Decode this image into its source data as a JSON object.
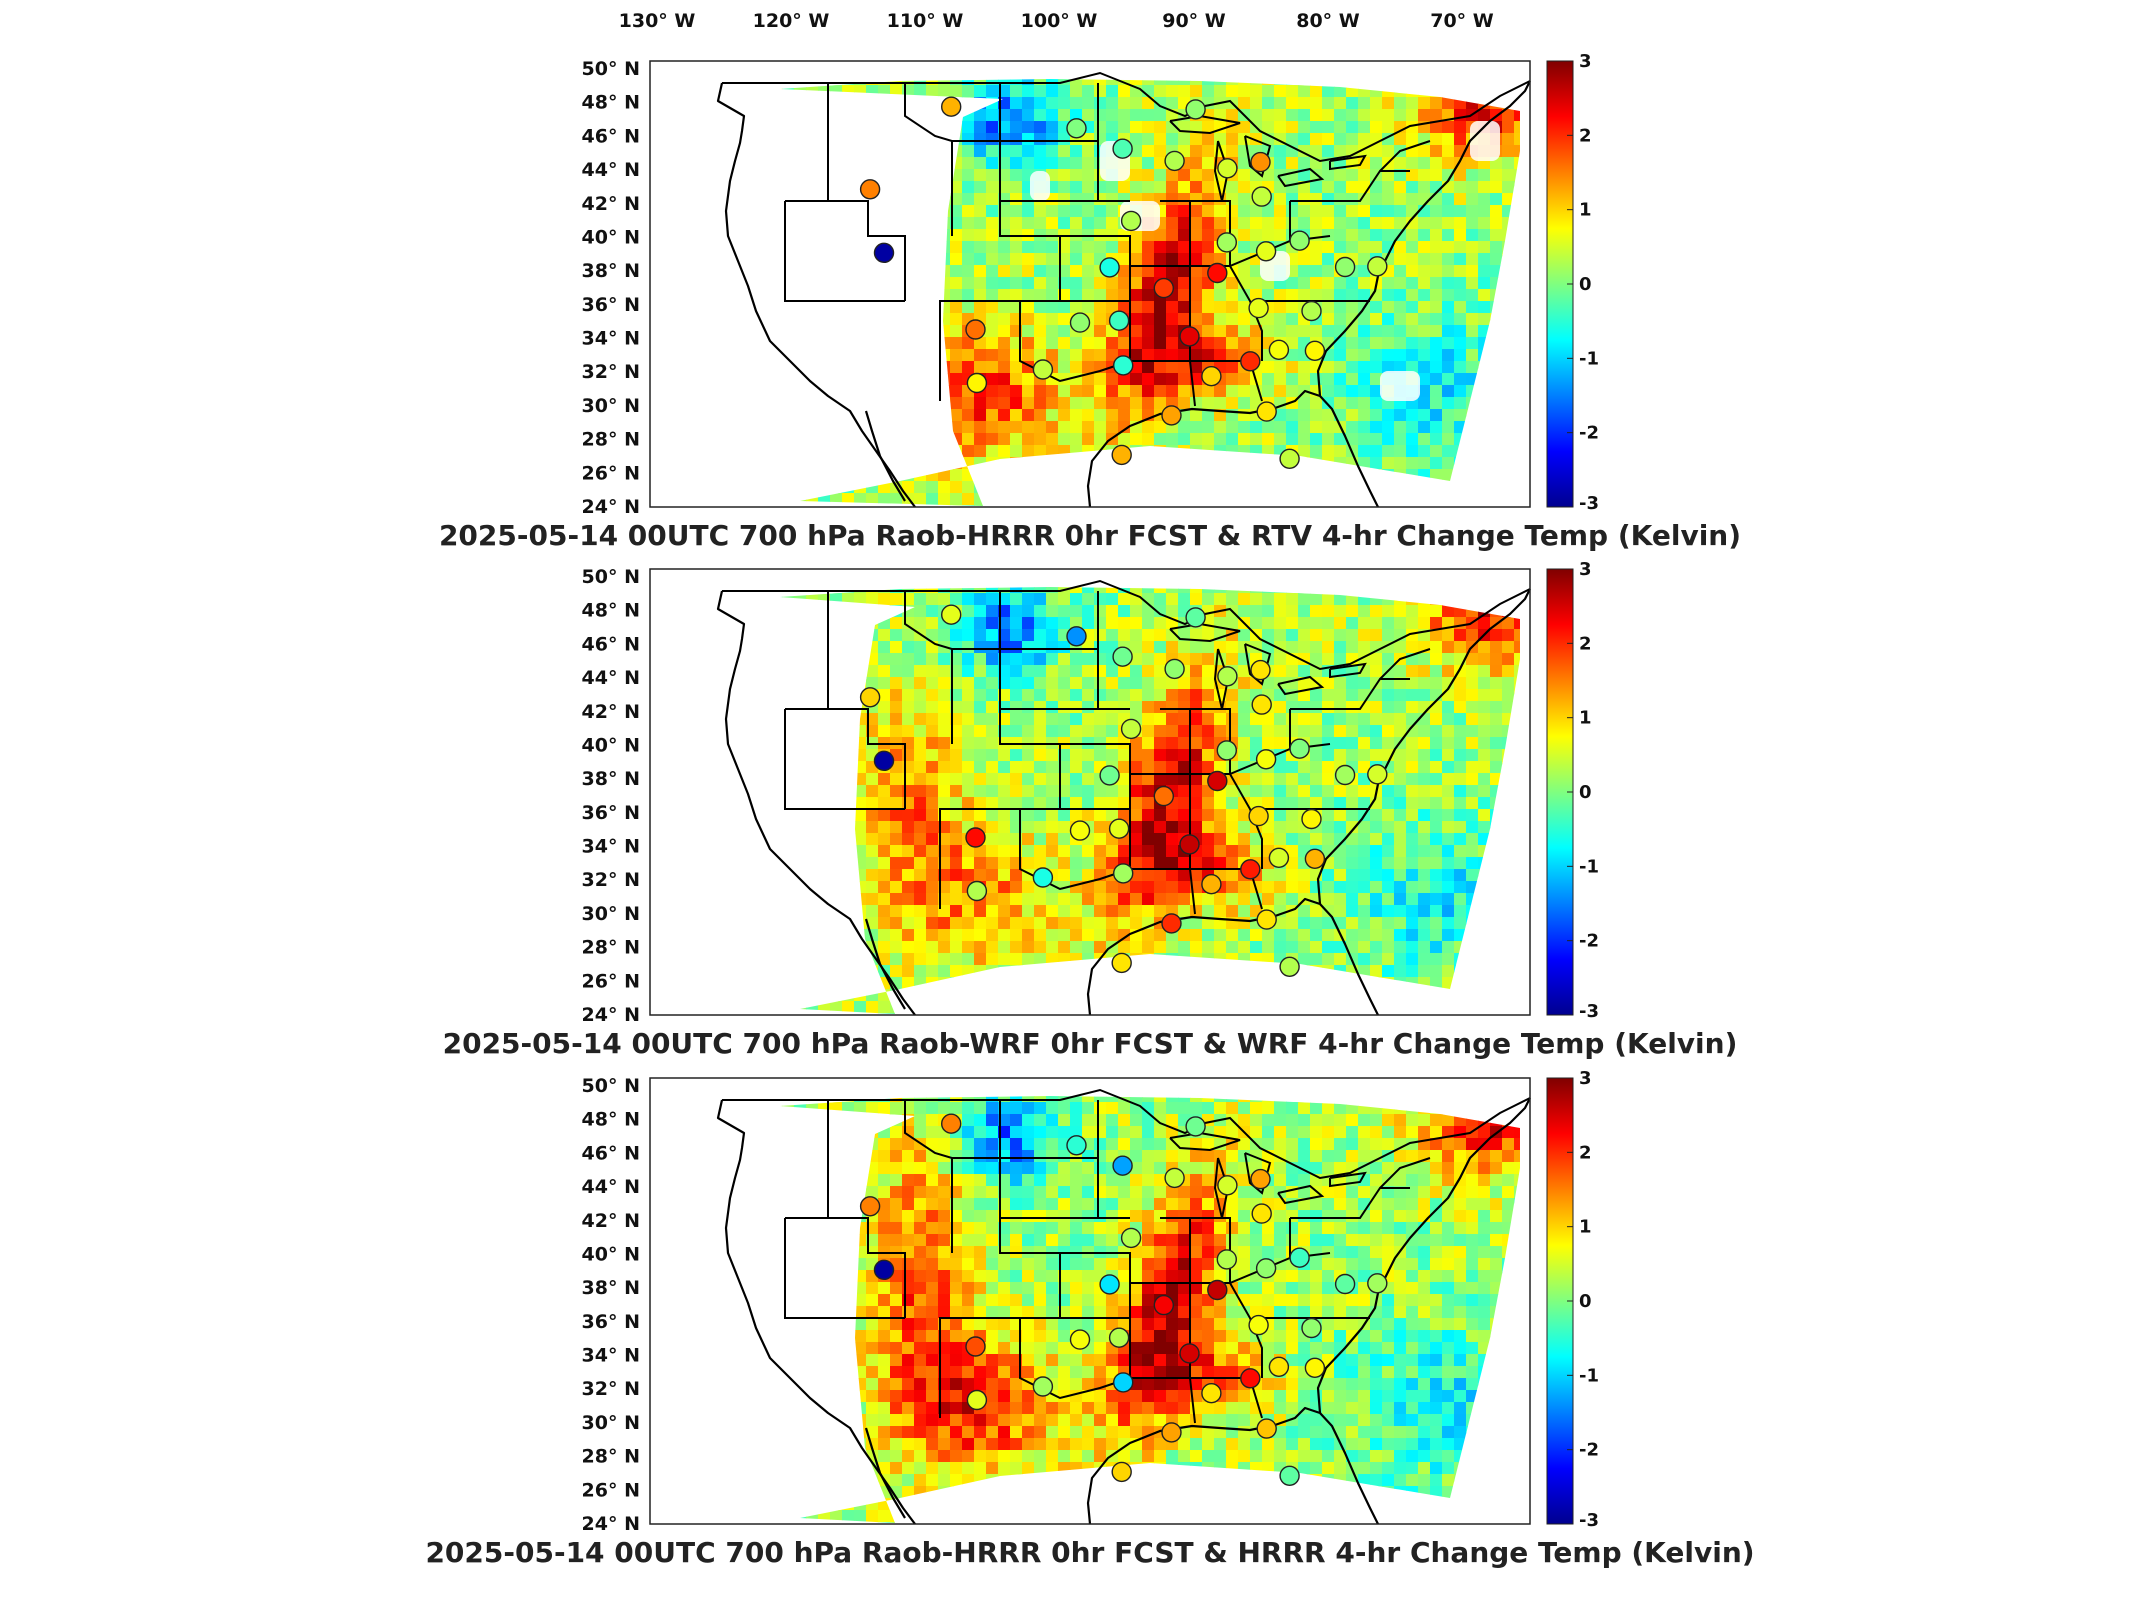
{
  "lon_labels": [
    "130° W",
    "120° W",
    "110° W",
    "100° W",
    "90° W",
    "80° W",
    "70° W"
  ],
  "lat_labels": [
    "50° N",
    "48° N",
    "46° N",
    "44° N",
    "42° N",
    "40° N",
    "38° N",
    "36° N",
    "34° N",
    "32° N",
    "30° N",
    "28° N",
    "26° N",
    "24° N"
  ],
  "colorbar": {
    "ticks": [
      "3",
      "2",
      "1",
      "0",
      "-1",
      "-2",
      "-3"
    ],
    "colormap": "jet",
    "range": [
      -3,
      3
    ]
  },
  "panels": [
    {
      "title": "2025-05-14 00UTC 700 hPa Raob-HRRR 0hr FCST & RTV 4-hr Change Temp (Kelvin)",
      "field": "rtv",
      "stations": [
        {
          "lon": -109.5,
          "lat": 48.2,
          "v": 1.2
        },
        {
          "lon": -116.2,
          "lat": 43.6,
          "v": 1.5
        },
        {
          "lon": -116.0,
          "lat": 39.8,
          "v": -2.8
        },
        {
          "lon": -109.6,
          "lat": 35.2,
          "v": 1.6
        },
        {
          "lon": -110.0,
          "lat": 32.1,
          "v": 0.8
        },
        {
          "lon": -104.3,
          "lat": 32.8,
          "v": 0.4
        },
        {
          "lon": -97.5,
          "lat": 33.0,
          "v": -0.5
        },
        {
          "lon": -101.0,
          "lat": 35.5,
          "v": 0.1
        },
        {
          "lon": -97.8,
          "lat": 35.6,
          "v": -0.4
        },
        {
          "lon": -94.2,
          "lat": 37.5,
          "v": 1.9
        },
        {
          "lon": -98.5,
          "lat": 38.7,
          "v": -0.6
        },
        {
          "lon": -96.8,
          "lat": 41.4,
          "v": 0.3
        },
        {
          "lon": -100.7,
          "lat": 46.8,
          "v": 0.0
        },
        {
          "lon": -97.4,
          "lat": 45.6,
          "v": -0.3
        },
        {
          "lon": -92.2,
          "lat": 47.9,
          "v": 0.1
        },
        {
          "lon": -93.6,
          "lat": 44.9,
          "v": 0.3
        },
        {
          "lon": -89.7,
          "lat": 44.5,
          "v": 0.5
        },
        {
          "lon": -87.3,
          "lat": 44.9,
          "v": 1.4
        },
        {
          "lon": -87.0,
          "lat": 42.9,
          "v": 0.4
        },
        {
          "lon": -89.4,
          "lat": 40.2,
          "v": 0.2
        },
        {
          "lon": -86.3,
          "lat": 39.7,
          "v": 0.6
        },
        {
          "lon": -83.8,
          "lat": 40.4,
          "v": 0.1
        },
        {
          "lon": -90.0,
          "lat": 38.4,
          "v": 2.2
        },
        {
          "lon": -92.0,
          "lat": 34.7,
          "v": 2.4
        },
        {
          "lon": -90.0,
          "lat": 32.4,
          "v": 1.0
        },
        {
          "lon": -86.8,
          "lat": 33.3,
          "v": 2.0
        },
        {
          "lon": -84.5,
          "lat": 34.0,
          "v": 0.7
        },
        {
          "lon": -86.5,
          "lat": 36.4,
          "v": 0.6
        },
        {
          "lon": -82.2,
          "lat": 36.3,
          "v": 0.3
        },
        {
          "lon": -81.5,
          "lat": 34.0,
          "v": 0.8
        },
        {
          "lon": -85.0,
          "lat": 30.4,
          "v": 0.9
        },
        {
          "lon": -82.5,
          "lat": 27.7,
          "v": 0.4
        },
        {
          "lon": -93.3,
          "lat": 30.1,
          "v": 1.3
        },
        {
          "lon": -97.7,
          "lat": 27.8,
          "v": 1.2
        },
        {
          "lon": -80.0,
          "lat": 38.9,
          "v": 0.1
        },
        {
          "lon": -77.5,
          "lat": 39.0,
          "v": 0.4
        }
      ]
    },
    {
      "title": "2025-05-14 00UTC 700 hPa Raob-WRF 0hr FCST & WRF 4-hr Change Temp (Kelvin)",
      "field": "wrf",
      "stations": [
        {
          "lon": -109.5,
          "lat": 48.2,
          "v": 0.6
        },
        {
          "lon": -116.2,
          "lat": 43.6,
          "v": 1.0
        },
        {
          "lon": -116.0,
          "lat": 39.8,
          "v": -2.8
        },
        {
          "lon": -109.6,
          "lat": 35.2,
          "v": 2.2
        },
        {
          "lon": -110.0,
          "lat": 32.1,
          "v": 0.3
        },
        {
          "lon": -104.3,
          "lat": 32.8,
          "v": -0.6
        },
        {
          "lon": -97.5,
          "lat": 33.0,
          "v": 0.2
        },
        {
          "lon": -101.0,
          "lat": 35.5,
          "v": 0.7
        },
        {
          "lon": -97.8,
          "lat": 35.6,
          "v": 0.6
        },
        {
          "lon": -94.2,
          "lat": 37.5,
          "v": 1.6
        },
        {
          "lon": -98.5,
          "lat": 38.7,
          "v": -0.1
        },
        {
          "lon": -96.8,
          "lat": 41.4,
          "v": 0.4
        },
        {
          "lon": -100.7,
          "lat": 46.8,
          "v": -1.4
        },
        {
          "lon": -97.4,
          "lat": 45.6,
          "v": -0.1
        },
        {
          "lon": -92.2,
          "lat": 47.9,
          "v": -0.2
        },
        {
          "lon": -93.6,
          "lat": 44.9,
          "v": 0.1
        },
        {
          "lon": -89.7,
          "lat": 44.5,
          "v": 0.3
        },
        {
          "lon": -87.3,
          "lat": 44.9,
          "v": 0.9
        },
        {
          "lon": -87.0,
          "lat": 42.9,
          "v": 0.9
        },
        {
          "lon": -89.4,
          "lat": 40.2,
          "v": 0.1
        },
        {
          "lon": -86.3,
          "lat": 39.7,
          "v": 0.7
        },
        {
          "lon": -83.8,
          "lat": 40.4,
          "v": 0.0
        },
        {
          "lon": -90.0,
          "lat": 38.4,
          "v": 2.5
        },
        {
          "lon": -92.0,
          "lat": 34.7,
          "v": 2.6
        },
        {
          "lon": -90.0,
          "lat": 32.4,
          "v": 1.2
        },
        {
          "lon": -86.8,
          "lat": 33.3,
          "v": 2.1
        },
        {
          "lon": -84.5,
          "lat": 34.0,
          "v": 0.5
        },
        {
          "lon": -86.5,
          "lat": 36.4,
          "v": 1.0
        },
        {
          "lon": -82.2,
          "lat": 36.3,
          "v": 0.8
        },
        {
          "lon": -81.5,
          "lat": 34.0,
          "v": 1.2
        },
        {
          "lon": -85.0,
          "lat": 30.4,
          "v": 0.9
        },
        {
          "lon": -82.5,
          "lat": 27.7,
          "v": 0.3
        },
        {
          "lon": -93.3,
          "lat": 30.1,
          "v": 2.0
        },
        {
          "lon": -97.7,
          "lat": 27.8,
          "v": 0.9
        },
        {
          "lon": -80.0,
          "lat": 38.9,
          "v": 0.2
        },
        {
          "lon": -77.5,
          "lat": 39.0,
          "v": 0.5
        }
      ]
    },
    {
      "title": "2025-05-14 00UTC 700 hPa Raob-HRRR 0hr FCST & HRRR 4-hr Change Temp (Kelvin)",
      "field": "hrrr",
      "stations": [
        {
          "lon": -109.5,
          "lat": 48.2,
          "v": 1.5
        },
        {
          "lon": -116.2,
          "lat": 43.6,
          "v": 1.5
        },
        {
          "lon": -116.0,
          "lat": 39.8,
          "v": -2.8
        },
        {
          "lon": -109.6,
          "lat": 35.2,
          "v": 1.8
        },
        {
          "lon": -110.0,
          "lat": 32.1,
          "v": 0.6
        },
        {
          "lon": -104.3,
          "lat": 32.8,
          "v": 0.2
        },
        {
          "lon": -97.5,
          "lat": 33.0,
          "v": -1.0
        },
        {
          "lon": -101.0,
          "lat": 35.5,
          "v": 0.7
        },
        {
          "lon": -97.8,
          "lat": 35.6,
          "v": 0.3
        },
        {
          "lon": -94.2,
          "lat": 37.5,
          "v": 2.3
        },
        {
          "lon": -98.5,
          "lat": 38.7,
          "v": -0.9
        },
        {
          "lon": -96.8,
          "lat": 41.4,
          "v": 0.3
        },
        {
          "lon": -100.7,
          "lat": 46.8,
          "v": -0.5
        },
        {
          "lon": -97.4,
          "lat": 45.6,
          "v": -1.3
        },
        {
          "lon": -92.2,
          "lat": 47.9,
          "v": -0.1
        },
        {
          "lon": -93.6,
          "lat": 44.9,
          "v": 0.4
        },
        {
          "lon": -89.7,
          "lat": 44.5,
          "v": 0.5
        },
        {
          "lon": -87.3,
          "lat": 44.9,
          "v": 1.3
        },
        {
          "lon": -87.0,
          "lat": 42.9,
          "v": 0.9
        },
        {
          "lon": -89.4,
          "lat": 40.2,
          "v": 0.3
        },
        {
          "lon": -86.3,
          "lat": 39.7,
          "v": 0.1
        },
        {
          "lon": -83.8,
          "lat": 40.4,
          "v": -0.4
        },
        {
          "lon": -90.0,
          "lat": 38.4,
          "v": 2.6
        },
        {
          "lon": -92.0,
          "lat": 34.7,
          "v": 2.5
        },
        {
          "lon": -90.0,
          "lat": 32.4,
          "v": 0.9
        },
        {
          "lon": -86.8,
          "lat": 33.3,
          "v": 2.2
        },
        {
          "lon": -84.5,
          "lat": 34.0,
          "v": 0.9
        },
        {
          "lon": -86.5,
          "lat": 36.4,
          "v": 0.7
        },
        {
          "lon": -82.2,
          "lat": 36.3,
          "v": 0.1
        },
        {
          "lon": -81.5,
          "lat": 34.0,
          "v": 0.8
        },
        {
          "lon": -85.0,
          "lat": 30.4,
          "v": 1.1
        },
        {
          "lon": -82.5,
          "lat": 27.7,
          "v": -0.2
        },
        {
          "lon": -93.3,
          "lat": 30.1,
          "v": 1.3
        },
        {
          "lon": -97.7,
          "lat": 27.8,
          "v": 1.0
        },
        {
          "lon": -80.0,
          "lat": 38.9,
          "v": -0.2
        },
        {
          "lon": -77.5,
          "lat": 39.0,
          "v": 0.2
        }
      ]
    }
  ]
}
